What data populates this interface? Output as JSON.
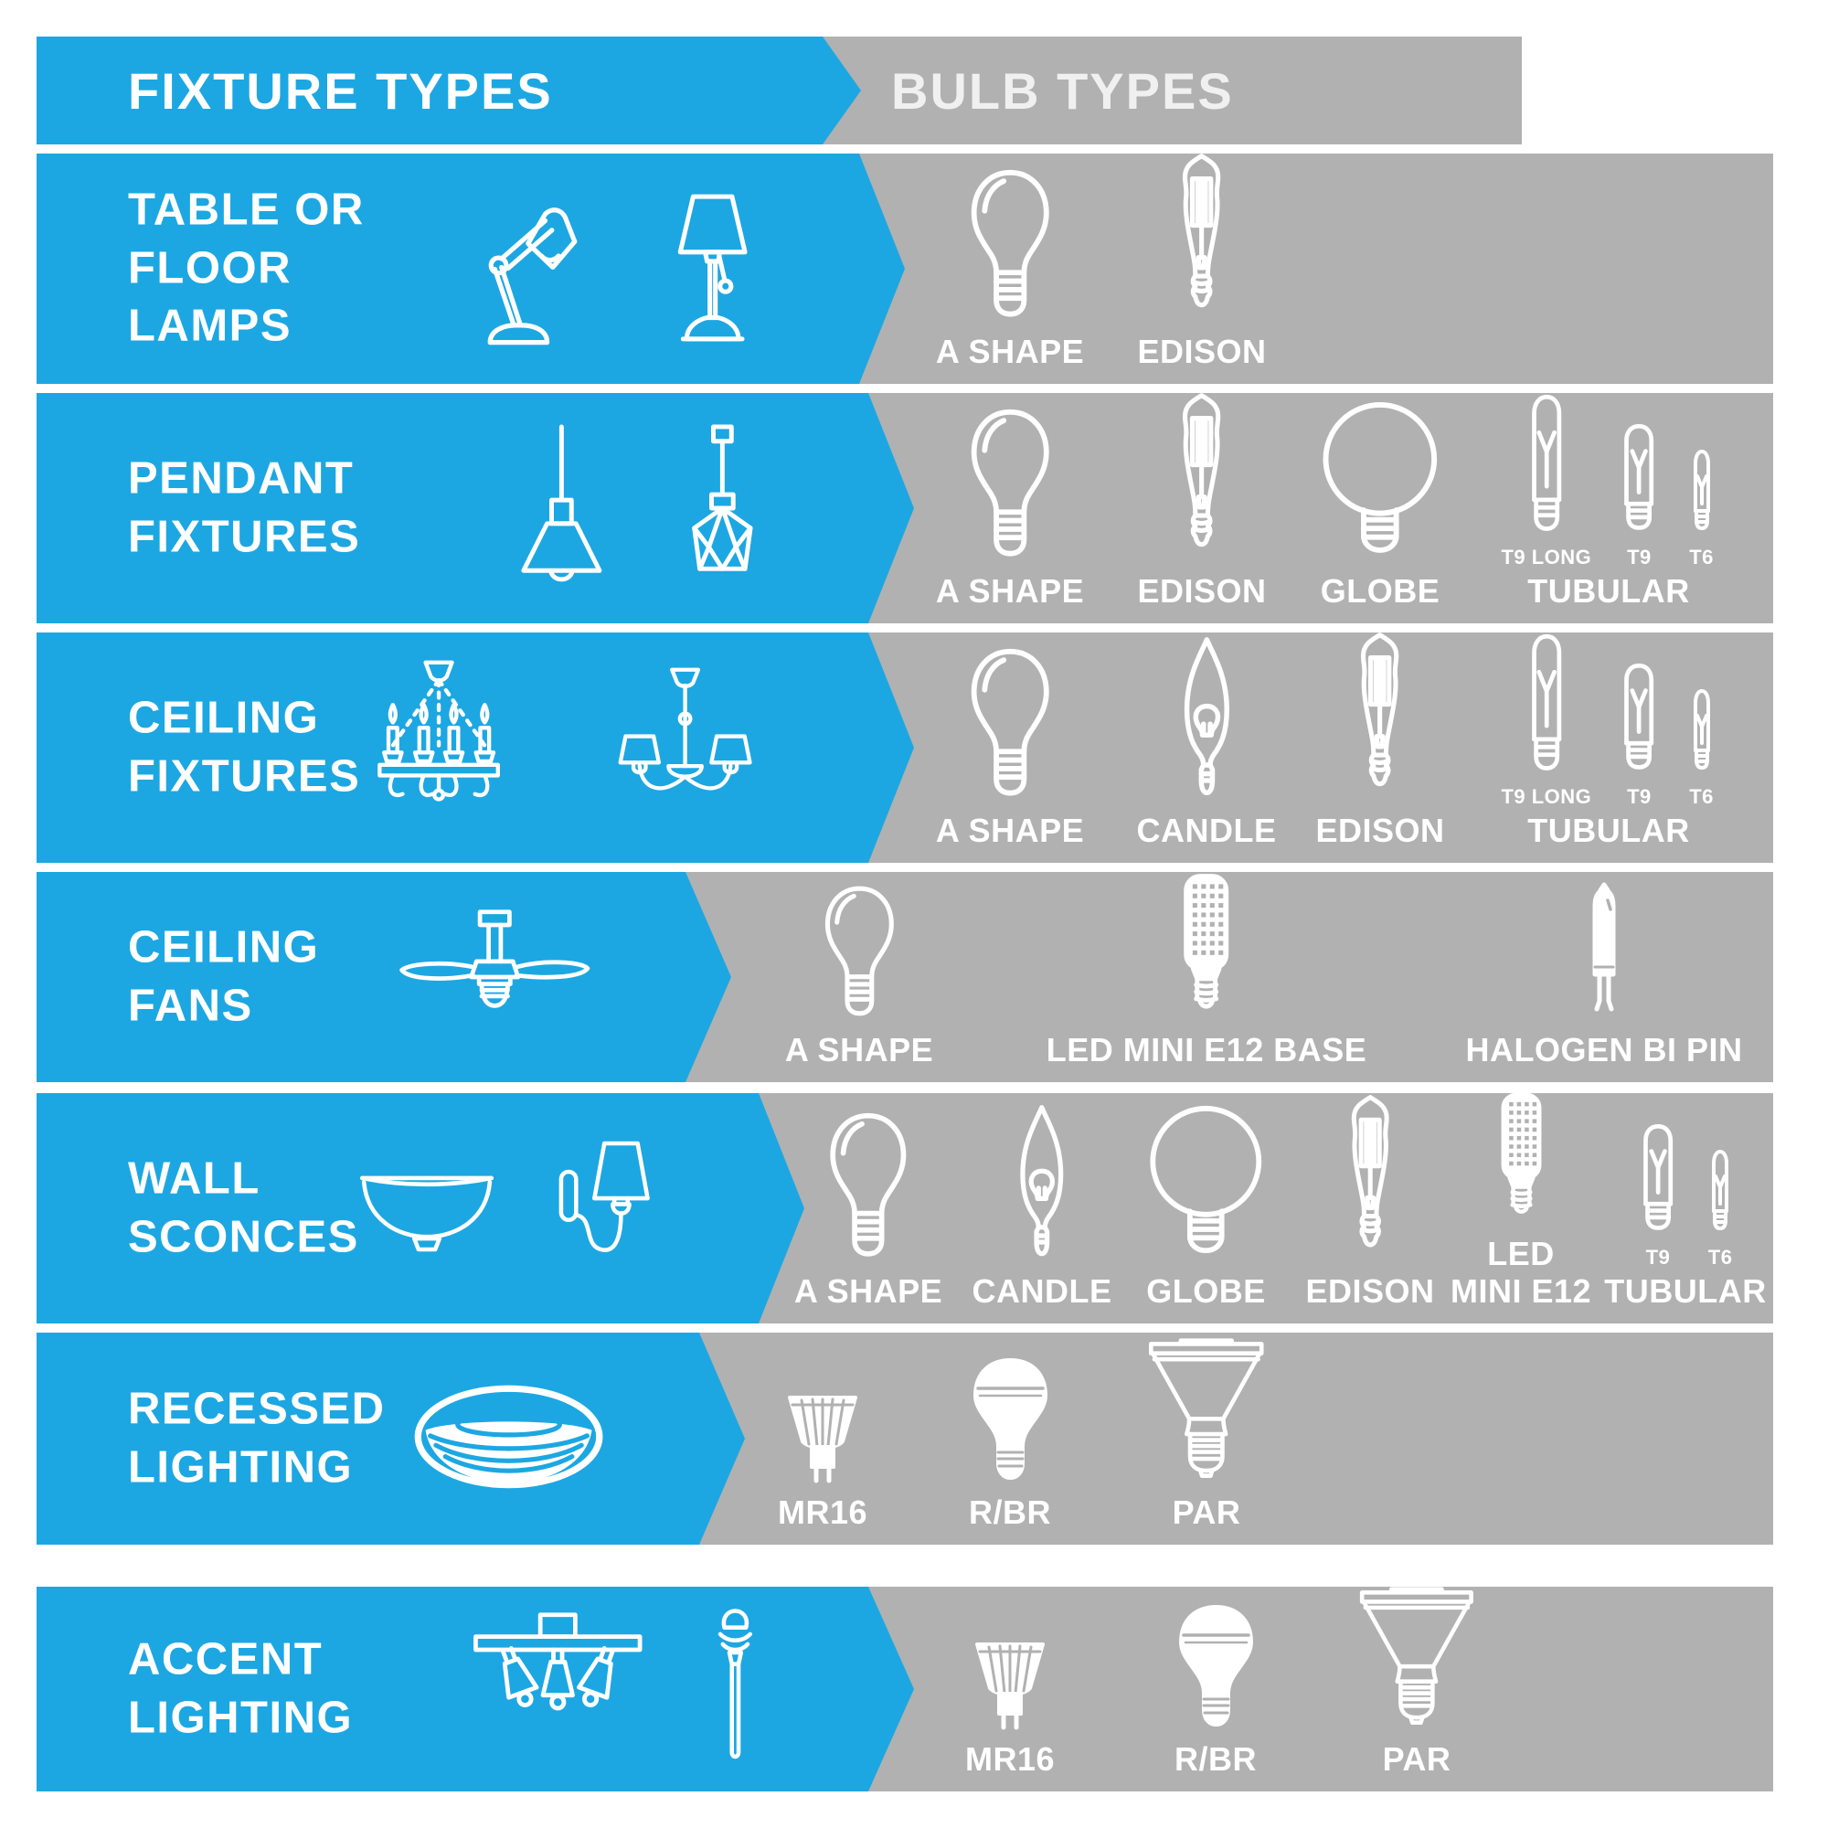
{
  "colors": {
    "accent_blue": "#1CA7E2",
    "panel_gray": "#B1B1B1",
    "label_white": "#FFFFFF"
  },
  "header": {
    "left": "FIXTURE TYPES",
    "right": "BULB TYPES"
  },
  "rows": [
    {
      "id": "table-or-floor-lamps",
      "title_lines": [
        "TABLE OR",
        "FLOOR",
        "LAMPS"
      ],
      "fixture_icons": [
        "desk-lamp",
        "table-lamp"
      ],
      "bulbs": [
        {
          "type": "single",
          "icon": "a-shape",
          "label": "A SHAPE"
        },
        {
          "type": "single",
          "icon": "edison",
          "label": "EDISON"
        }
      ]
    },
    {
      "id": "pendant-fixtures",
      "title_lines": [
        "PENDANT",
        "FIXTURES"
      ],
      "fixture_icons": [
        "pendant-cone",
        "pendant-geometric"
      ],
      "bulbs": [
        {
          "type": "single",
          "icon": "a-shape",
          "label": "A SHAPE"
        },
        {
          "type": "single",
          "icon": "edison",
          "label": "EDISON"
        },
        {
          "type": "single",
          "icon": "globe",
          "label": "GLOBE"
        },
        {
          "type": "group",
          "label": "TUBULAR",
          "items": [
            {
              "icon": "tubular-t9-long",
              "sublabel": "T9 LONG"
            },
            {
              "icon": "tubular-t9",
              "sublabel": "T9"
            },
            {
              "icon": "tubular-t6",
              "sublabel": "T6"
            }
          ]
        }
      ]
    },
    {
      "id": "ceiling-fixtures",
      "title_lines": [
        "CEILING",
        "FIXTURES"
      ],
      "fixture_icons": [
        "chandelier",
        "chandelier-shades"
      ],
      "bulbs": [
        {
          "type": "single",
          "icon": "a-shape",
          "label": "A SHAPE"
        },
        {
          "type": "single",
          "icon": "candle",
          "label": "CANDLE"
        },
        {
          "type": "single",
          "icon": "edison",
          "label": "EDISON"
        },
        {
          "type": "group",
          "label": "TUBULAR",
          "items": [
            {
              "icon": "tubular-t9-long",
              "sublabel": "T9 LONG"
            },
            {
              "icon": "tubular-t9",
              "sublabel": "T9"
            },
            {
              "icon": "tubular-t6",
              "sublabel": "T6"
            }
          ]
        }
      ]
    },
    {
      "id": "ceiling-fans",
      "title_lines": [
        "CEILING",
        "FANS"
      ],
      "fixture_icons": [
        "ceiling-fan"
      ],
      "bulbs": [
        {
          "type": "single",
          "icon": "a-shape",
          "label": "A SHAPE"
        },
        {
          "type": "single",
          "icon": "led-mini-e12",
          "label": "LED MINI E12 BASE"
        },
        {
          "type": "single",
          "icon": "halogen-bi-pin",
          "label": "HALOGEN BI PIN"
        }
      ]
    },
    {
      "id": "wall-sconces",
      "title_lines": [
        "WALL",
        "SCONCES"
      ],
      "fixture_icons": [
        "bowl-sconce",
        "wall-lamp"
      ],
      "bulbs": [
        {
          "type": "single",
          "icon": "a-shape",
          "label": "A SHAPE"
        },
        {
          "type": "single",
          "icon": "candle",
          "label": "CANDLE"
        },
        {
          "type": "single",
          "icon": "globe",
          "label": "GLOBE"
        },
        {
          "type": "single",
          "icon": "edison",
          "label": "EDISON"
        },
        {
          "type": "single",
          "icon": "led-mini-e12",
          "label_lines": [
            "LED",
            "MINI E12"
          ]
        },
        {
          "type": "group",
          "label": "TUBULAR",
          "items": [
            {
              "icon": "tubular-t9",
              "sublabel": "T9"
            },
            {
              "icon": "tubular-t6",
              "sublabel": "T6"
            }
          ]
        }
      ]
    },
    {
      "id": "recessed-lighting",
      "title_lines": [
        "RECESSED",
        "LIGHTING"
      ],
      "fixture_icons": [
        "recessed-light"
      ],
      "bulbs": [
        {
          "type": "single",
          "icon": "mr16",
          "label": "MR16"
        },
        {
          "type": "single",
          "icon": "r-br",
          "label": "R/BR"
        },
        {
          "type": "single",
          "icon": "par",
          "label": "PAR"
        }
      ]
    },
    {
      "id": "accent-lighting",
      "title_lines": [
        "ACCENT",
        "LIGHTING"
      ],
      "fixture_icons": [
        "track-light",
        "path-light"
      ],
      "bulbs": [
        {
          "type": "single",
          "icon": "mr16",
          "label": "MR16"
        },
        {
          "type": "single",
          "icon": "r-br",
          "label": "R/BR"
        },
        {
          "type": "single",
          "icon": "par",
          "label": "PAR"
        }
      ]
    }
  ]
}
